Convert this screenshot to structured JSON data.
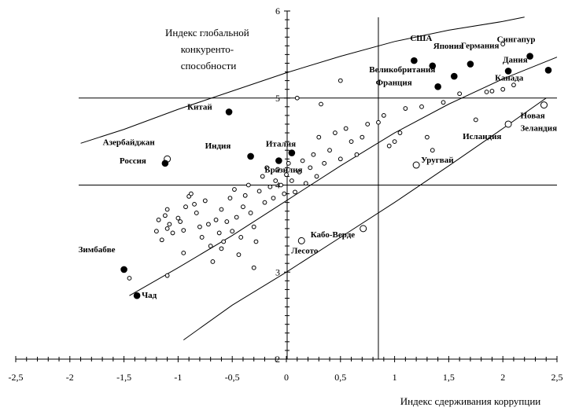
{
  "chart_data": {
    "type": "scatter",
    "title": "",
    "xlabel": "Индекс сдерживания коррупции",
    "ylabel": "Индекс глобальной конкурентоспособности",
    "ylabel_lines": [
      "Индекс глобальной",
      "конкуренто-",
      "способности"
    ],
    "xlim": [
      -2.5,
      2.5
    ],
    "ylim": [
      2,
      6
    ],
    "x_ticks": [
      "-2,5",
      "-2",
      "-1,5",
      "-1",
      "-0,5",
      "0",
      "0,5",
      "1",
      "1,5",
      "2",
      "2,5"
    ],
    "x_tick_values": [
      -2.5,
      -2,
      -1.5,
      -1,
      -0.5,
      0,
      0.5,
      1,
      1.5,
      2,
      2.5
    ],
    "y_ticks": [
      "2",
      "3",
      "4",
      "5",
      "6"
    ],
    "y_tick_values": [
      2,
      3,
      4,
      5,
      6
    ],
    "reference_lines": {
      "horizontal": [
        5,
        4
      ],
      "vertical": [
        0.85
      ]
    },
    "curves": {
      "upper": [
        [
          -1.9,
          4.48
        ],
        [
          -1.5,
          4.64
        ],
        [
          -1,
          4.87
        ],
        [
          -0.5,
          5.08
        ],
        [
          0,
          5.29
        ],
        [
          0.5,
          5.48
        ],
        [
          1,
          5.65
        ],
        [
          1.5,
          5.78
        ],
        [
          2,
          5.88
        ],
        [
          2.2,
          5.93
        ]
      ],
      "middle": [
        [
          -1.45,
          2.73
        ],
        [
          -1,
          3.05
        ],
        [
          -0.5,
          3.42
        ],
        [
          0,
          3.82
        ],
        [
          0.5,
          4.22
        ],
        [
          1,
          4.6
        ],
        [
          1.5,
          4.93
        ],
        [
          2,
          5.22
        ],
        [
          2.5,
          5.47
        ]
      ],
      "lower": [
        [
          -0.95,
          2.22
        ],
        [
          -0.5,
          2.62
        ],
        [
          0,
          3.0
        ],
        [
          0.5,
          3.4
        ],
        [
          1,
          3.8
        ],
        [
          1.5,
          4.22
        ],
        [
          2,
          4.65
        ],
        [
          2.4,
          5.0
        ]
      ]
    },
    "highlighted": [
      {
        "name": "США",
        "x": 1.18,
        "y": 5.43,
        "label": "США"
      },
      {
        "name": "Япония",
        "x": 1.35,
        "y": 5.37,
        "label": "Япония"
      },
      {
        "name": "Германия",
        "x": 1.7,
        "y": 5.39,
        "label": "Германия"
      },
      {
        "name": "Сингапур",
        "x": 2.25,
        "y": 5.48,
        "label": "Сингапур"
      },
      {
        "name": "Дания",
        "x": 2.42,
        "y": 5.32,
        "label": "Дания"
      },
      {
        "name": "Канада",
        "x": 2.05,
        "y": 5.31,
        "label": "Канада"
      },
      {
        "name": "Великобритания",
        "x": 1.55,
        "y": 5.25,
        "label": "Великобритания"
      },
      {
        "name": "Франция",
        "x": 1.4,
        "y": 5.13,
        "label": "Франция"
      },
      {
        "name": "Китай",
        "x": -0.53,
        "y": 4.84,
        "label": "Китай"
      },
      {
        "name": "Италия",
        "x": 0.05,
        "y": 4.37,
        "label": "Италия"
      },
      {
        "name": "Индия",
        "x": -0.33,
        "y": 4.33,
        "label": "Индия"
      },
      {
        "name": "Бразилия",
        "x": -0.07,
        "y": 4.28,
        "label": "Бразилия"
      },
      {
        "name": "Россия",
        "x": -1.12,
        "y": 4.25,
        "label": "Россия"
      },
      {
        "name": "Зимбабве",
        "x": -1.5,
        "y": 3.03,
        "label": "Зимбабве"
      },
      {
        "name": "Чад",
        "x": -1.38,
        "y": 2.73,
        "label": "Чад"
      }
    ],
    "open_labeled": [
      {
        "name": "Азербайджан",
        "x": -1.1,
        "y": 4.3,
        "label": "Азербайджан"
      },
      {
        "name": "Новая Зеландия",
        "x": 2.38,
        "y": 4.92,
        "label": "Новая Зеландия",
        "label_lines": [
          "Новая",
          "Зеландия"
        ]
      },
      {
        "name": "Исландия",
        "x": 2.05,
        "y": 4.7,
        "label": "Исландия"
      },
      {
        "name": "Уругвай",
        "x": 1.2,
        "y": 4.23,
        "label": "Уругвай"
      },
      {
        "name": "Кабо-Верде",
        "x": 0.71,
        "y": 3.5,
        "label": "Кабо-Верде"
      },
      {
        "name": "Лесото",
        "x": 0.14,
        "y": 3.36,
        "label": "Лесото"
      }
    ],
    "other_points": [
      [
        -1.2,
        3.47
      ],
      [
        -1.18,
        3.6
      ],
      [
        -1.15,
        3.37
      ],
      [
        -1.12,
        3.65
      ],
      [
        -1.1,
        3.5
      ],
      [
        -1.08,
        3.55
      ],
      [
        -1.1,
        3.72
      ],
      [
        -1.05,
        3.45
      ],
      [
        -1.0,
        3.62
      ],
      [
        -0.98,
        3.58
      ],
      [
        -0.95,
        3.48
      ],
      [
        -0.93,
        3.75
      ],
      [
        -0.9,
        3.87
      ],
      [
        -0.88,
        3.9
      ],
      [
        -0.85,
        3.78
      ],
      [
        -0.83,
        3.68
      ],
      [
        -0.8,
        3.52
      ],
      [
        -0.78,
        3.4
      ],
      [
        -0.75,
        3.82
      ],
      [
        -0.72,
        3.55
      ],
      [
        -0.7,
        3.3
      ],
      [
        -0.68,
        3.12
      ],
      [
        -0.65,
        3.6
      ],
      [
        -0.62,
        3.45
      ],
      [
        -0.6,
        3.72
      ],
      [
        -0.58,
        3.35
      ],
      [
        -0.55,
        3.58
      ],
      [
        -0.52,
        3.85
      ],
      [
        -0.5,
        3.47
      ],
      [
        -0.48,
        3.95
      ],
      [
        -0.46,
        3.63
      ],
      [
        -0.44,
        3.2
      ],
      [
        -0.42,
        3.4
      ],
      [
        -0.4,
        3.75
      ],
      [
        -0.38,
        3.88
      ],
      [
        -0.35,
        4.0
      ],
      [
        -0.33,
        3.68
      ],
      [
        -0.3,
        3.52
      ],
      [
        -0.28,
        3.35
      ],
      [
        -0.25,
        3.93
      ],
      [
        -0.22,
        4.1
      ],
      [
        -0.2,
        3.8
      ],
      [
        -0.18,
        4.2
      ],
      [
        -0.15,
        3.98
      ],
      [
        -0.12,
        3.85
      ],
      [
        -0.1,
        4.05
      ],
      [
        -0.08,
        4.18
      ],
      [
        -0.05,
        4.0
      ],
      [
        -0.02,
        3.9
      ],
      [
        0.0,
        4.12
      ],
      [
        0.02,
        4.25
      ],
      [
        0.05,
        4.05
      ],
      [
        0.08,
        3.92
      ],
      [
        0.12,
        4.15
      ],
      [
        0.15,
        4.28
      ],
      [
        0.18,
        4.02
      ],
      [
        0.22,
        4.2
      ],
      [
        0.25,
        4.35
      ],
      [
        0.28,
        4.1
      ],
      [
        0.3,
        4.55
      ],
      [
        0.35,
        4.25
      ],
      [
        0.4,
        4.4
      ],
      [
        0.45,
        4.6
      ],
      [
        0.5,
        4.3
      ],
      [
        0.55,
        4.65
      ],
      [
        0.6,
        4.5
      ],
      [
        0.65,
        4.35
      ],
      [
        0.75,
        4.7
      ],
      [
        0.85,
        4.72
      ],
      [
        0.9,
        4.8
      ],
      [
        0.95,
        4.45
      ],
      [
        1.0,
        4.5
      ],
      [
        1.05,
        4.6
      ],
      [
        1.1,
        4.88
      ],
      [
        1.25,
        4.9
      ],
      [
        1.3,
        4.55
      ],
      [
        1.35,
        4.4
      ],
      [
        1.45,
        4.95
      ],
      [
        1.6,
        5.05
      ],
      [
        1.75,
        4.75
      ],
      [
        1.9,
        5.08
      ],
      [
        2.0,
        5.1
      ],
      [
        2.1,
        5.15
      ],
      [
        -1.45,
        2.93
      ],
      [
        -1.1,
        2.96
      ],
      [
        -0.95,
        3.22
      ],
      [
        -0.6,
        3.27
      ],
      [
        -0.3,
        3.05
      ],
      [
        0.7,
        4.55
      ],
      [
        0.32,
        4.93
      ],
      [
        0.1,
        5.0
      ],
      [
        0.5,
        5.2
      ],
      [
        1.85,
        5.07
      ],
      [
        2.0,
        5.62
      ]
    ]
  }
}
